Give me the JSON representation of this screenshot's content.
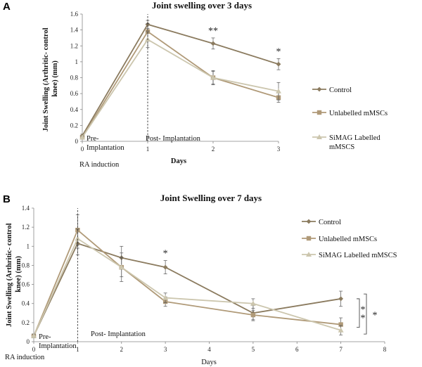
{
  "chart_data": [
    {
      "panel": "A",
      "type": "line",
      "title": "Joint swelling over 3 days",
      "xlabel": "Days",
      "ylabel": "Joint Swelling (Arthritic- control knee) (mm)",
      "x": [
        0,
        1,
        2,
        3
      ],
      "xticks": [
        "0",
        "1",
        "2",
        "3"
      ],
      "xlim": [
        0,
        3
      ],
      "ylim": [
        0,
        1.6
      ],
      "yticks": [
        "0",
        "0.2",
        "0.4",
        "0.6",
        "0.8",
        "1",
        "1.2",
        "1.4",
        "1.6"
      ],
      "series": [
        {
          "name": "Control",
          "color": "#8b7b5f",
          "marker": "diamond",
          "values": [
            0.07,
            1.47,
            1.23,
            0.97
          ],
          "errors": [
            0.02,
            0.05,
            0.07,
            0.07
          ]
        },
        {
          "name": "Unlabelled mMSCs",
          "color": "#b09a78",
          "marker": "square",
          "values": [
            0.05,
            1.38,
            0.8,
            0.55
          ],
          "errors": [
            0.02,
            0.1,
            0.09,
            0.06
          ]
        },
        {
          "name": "SiMAG Labelled mMSCS",
          "color": "#ccc6ae",
          "marker": "triangle",
          "values": [
            0.05,
            1.28,
            0.8,
            0.63
          ],
          "errors": [
            0.02,
            0.1,
            0.08,
            0.11
          ]
        }
      ],
      "annotations": {
        "pre": "Pre-\nImplantation",
        "post": "Post- Implantation",
        "ra": "RA induction",
        "stars": [
          {
            "x": 2,
            "text": "**"
          },
          {
            "x": 3,
            "text": "*"
          }
        ]
      },
      "legend_placement": "right"
    },
    {
      "panel": "B",
      "type": "line",
      "title": "Joint Swelling over 7 days",
      "xlabel": "Days",
      "ylabel": "Joint Swelling (Arthritic- control knee) (mm)",
      "xlim": [
        0,
        8
      ],
      "ylim": [
        0,
        1.4
      ],
      "xticks": [
        "0",
        "1",
        "2",
        "3",
        "4",
        "5",
        "6",
        "7",
        "8"
      ],
      "yticks": [
        "0",
        "0.2",
        "0.4",
        "0.6",
        "0.8",
        "1",
        "1.2",
        "1.4"
      ],
      "x": [
        0,
        1,
        2,
        3,
        5,
        7
      ],
      "series": [
        {
          "name": "Control",
          "color": "#8b7b5f",
          "marker": "diamond",
          "values": [
            0.06,
            1.03,
            0.88,
            0.78,
            0.3,
            0.45
          ],
          "errors": [
            0.02,
            0.12,
            0.12,
            0.07,
            0.08,
            0.08
          ]
        },
        {
          "name": "Unlabelled mMSCs",
          "color": "#b09a78",
          "marker": "square",
          "values": [
            0.06,
            1.17,
            0.78,
            0.42,
            0.28,
            0.18
          ],
          "errors": [
            0.02,
            0.16,
            0.15,
            0.05,
            0.05,
            0.07
          ]
        },
        {
          "name": "SiMAG Labelled mMSCS",
          "color": "#ccc6ae",
          "marker": "triangle",
          "values": [
            0.06,
            1.08,
            0.78,
            0.46,
            0.4,
            0.12
          ],
          "errors": [
            0.02,
            0.1,
            0.1,
            0.05,
            0.05,
            0.05
          ]
        }
      ],
      "annotations": {
        "pre": "Pre-\nImplantation",
        "post": "Post- Implantation",
        "ra": "RA induction",
        "stars": [
          {
            "x": 3,
            "text": "*"
          }
        ],
        "bracket_inner": "**",
        "bracket_outer": "*"
      },
      "legend_placement": "right"
    }
  ]
}
